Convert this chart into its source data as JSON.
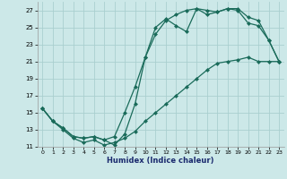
{
  "xlabel": "Humidex (Indice chaleur)",
  "xlim": [
    -0.5,
    23.5
  ],
  "ylim": [
    11,
    28
  ],
  "yticks": [
    11,
    13,
    15,
    17,
    19,
    21,
    23,
    25,
    27
  ],
  "xticks": [
    0,
    1,
    2,
    3,
    4,
    5,
    6,
    7,
    8,
    9,
    10,
    11,
    12,
    13,
    14,
    15,
    16,
    17,
    18,
    19,
    20,
    21,
    22,
    23
  ],
  "bg_color": "#cce8e8",
  "grid_color": "#aacfcf",
  "line_color": "#1a6b5a",
  "curve1_x": [
    0,
    1,
    2,
    3,
    4,
    5,
    6,
    7,
    8,
    9,
    10,
    11,
    12,
    13,
    14,
    15,
    16,
    17,
    18,
    19,
    20,
    21,
    22,
    23
  ],
  "curve1_y": [
    15.5,
    14.0,
    13.2,
    12.2,
    12.0,
    12.2,
    11.8,
    12.2,
    15.0,
    18.0,
    21.5,
    24.2,
    25.8,
    26.5,
    27.0,
    27.2,
    26.5,
    26.8,
    27.2,
    27.0,
    25.5,
    25.2,
    23.5,
    21.0
  ],
  "curve2_x": [
    0,
    1,
    2,
    3,
    4,
    5,
    6,
    7,
    8,
    9,
    10,
    11,
    12,
    13,
    14,
    15,
    16,
    17,
    18,
    19,
    20,
    21,
    22,
    23
  ],
  "curve2_y": [
    15.5,
    14.0,
    13.2,
    12.2,
    12.0,
    12.2,
    11.8,
    11.2,
    12.5,
    16.0,
    21.5,
    25.0,
    26.0,
    25.2,
    24.5,
    27.2,
    27.0,
    26.8,
    27.2,
    27.2,
    26.2,
    25.8,
    23.5,
    21.0
  ],
  "curve3_x": [
    0,
    1,
    2,
    3,
    4,
    5,
    6,
    7,
    8,
    9,
    10,
    11,
    12,
    13,
    14,
    15,
    16,
    17,
    18,
    19,
    20,
    21,
    22,
    23
  ],
  "curve3_y": [
    15.5,
    14.0,
    13.0,
    12.0,
    11.5,
    11.8,
    11.2,
    11.5,
    12.0,
    12.8,
    14.0,
    15.0,
    16.0,
    17.0,
    18.0,
    19.0,
    20.0,
    20.8,
    21.0,
    21.2,
    21.5,
    21.0,
    21.0,
    21.0
  ]
}
